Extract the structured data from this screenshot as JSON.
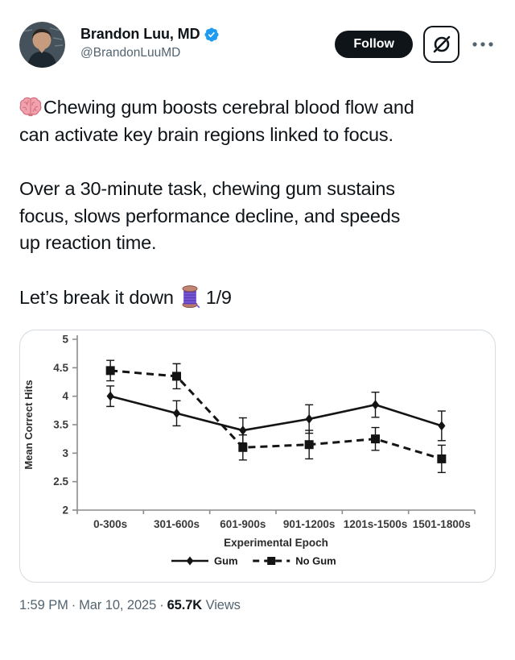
{
  "header": {
    "display_name": "Brandon Luu, MD",
    "handle": "@BrandonLuuMD",
    "follow_label": "Follow",
    "verified_icon": "verified-badge",
    "grok_icon": "grok-slashed-circle",
    "more_icon": "ellipsis"
  },
  "tweet": {
    "emojis": {
      "brain": "🧠",
      "thread": "🧵"
    },
    "paragraph1": "Chewing gum boosts cerebral blood flow and\ncan activate key brain regions linked to focus.",
    "paragraph2": "Over a 30-minute task, chewing gum sustains\nfocus, slows performance decline, and speeds\nup reaction time.",
    "paragraph3_prefix": "Let’s break it down",
    "paragraph3_suffix": "1/9"
  },
  "chart_data": {
    "type": "line",
    "title": "",
    "xlabel": "Experimental Epoch",
    "ylabel": "Mean Correct Hits",
    "ylim": [
      2,
      5
    ],
    "yticks": [
      2,
      2.5,
      3,
      3.5,
      4,
      4.5,
      5
    ],
    "categories": [
      "0-300s",
      "301-600s",
      "601-900s",
      "901-1200s",
      "1201s-1500s",
      "1501-1800s"
    ],
    "series": [
      {
        "name": "Gum",
        "line_style": "solid",
        "marker": "diamond",
        "values": [
          4.0,
          3.7,
          3.4,
          3.6,
          3.85,
          3.48
        ],
        "errors": [
          0.18,
          0.22,
          0.22,
          0.25,
          0.22,
          0.26
        ]
      },
      {
        "name": "No Gum",
        "line_style": "dashed",
        "marker": "square",
        "values": [
          4.45,
          4.35,
          3.1,
          3.15,
          3.25,
          2.9
        ],
        "errors": [
          0.18,
          0.22,
          0.22,
          0.25,
          0.2,
          0.24
        ]
      }
    ],
    "legend_position": "bottom",
    "grid": false
  },
  "footer": {
    "time": "1:59 PM",
    "date": "Mar 10, 2025",
    "separator": "·",
    "views_count": "65.7K",
    "views_label": "Views"
  },
  "colors": {
    "accent_blue": "#1d9bf0",
    "follow_button_bg": "#0f1419",
    "text_primary": "#0f1419",
    "text_secondary": "#536471",
    "chart_line": "#141414",
    "chart_axis": "#8c8c8c",
    "chart_text": "#3a3a3a"
  }
}
